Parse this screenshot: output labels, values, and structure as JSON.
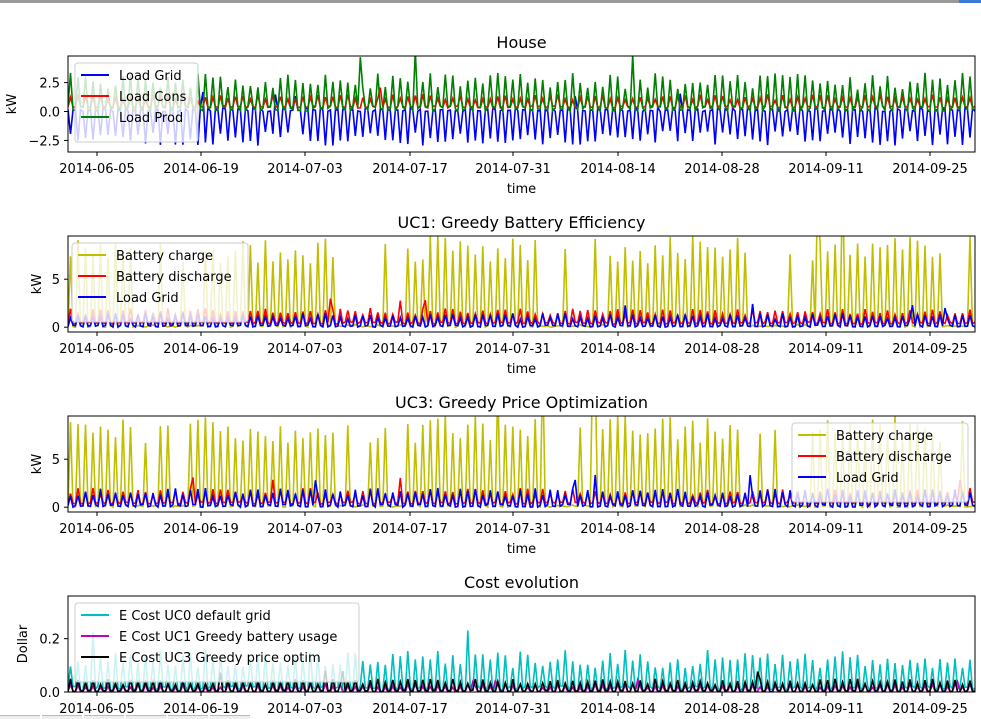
{
  "window": {
    "accent": "#3a7bd5"
  },
  "chart_data": [
    {
      "type": "line",
      "title": "House",
      "xlabel": "time",
      "ylabel": "kW",
      "x_ticks": [
        "2014-06-05",
        "2014-06-19",
        "2014-07-03",
        "2014-07-17",
        "2014-07-31",
        "2014-08-14",
        "2014-08-28",
        "2014-09-11",
        "2014-09-25"
      ],
      "y_ticks": [
        "2.5",
        "0.0",
        "−2.5"
      ],
      "ylim": [
        -3.5,
        4.8
      ],
      "xlim": [
        "2014-06-01",
        "2014-09-30"
      ],
      "legend_position": "top-left",
      "series": [
        {
          "name": "Load Grid",
          "color": "#0000ff",
          "pattern": "daily",
          "range": [
            -3.0,
            1.0
          ]
        },
        {
          "name": "Load Cons",
          "color": "#ff0000",
          "pattern": "daily",
          "range": [
            0.3,
            1.5
          ]
        },
        {
          "name": "Load Prod",
          "color": "#008000",
          "pattern": "daily",
          "range": [
            0.0,
            3.4
          ]
        }
      ]
    },
    {
      "type": "line",
      "title": "UC1: Greedy Battery Efficiency",
      "xlabel": "time",
      "ylabel": "kW",
      "x_ticks": [
        "2014-06-05",
        "2014-06-19",
        "2014-07-03",
        "2014-07-17",
        "2014-07-31",
        "2014-08-14",
        "2014-08-28",
        "2014-09-11",
        "2014-09-25"
      ],
      "y_ticks": [
        "5",
        "0"
      ],
      "ylim": [
        -0.5,
        9.5
      ],
      "xlim": [
        "2014-06-01",
        "2014-09-30"
      ],
      "legend_position": "top-left",
      "series": [
        {
          "name": "Battery charge",
          "color": "#bfbf00",
          "pattern": "daily",
          "range": [
            0,
            9.5
          ]
        },
        {
          "name": "Battery discharge",
          "color": "#ff0000",
          "pattern": "daily",
          "range": [
            0.3,
            2.0
          ]
        },
        {
          "name": "Load Grid",
          "color": "#0000ff",
          "pattern": "daily",
          "range": [
            0,
            1.5
          ]
        }
      ]
    },
    {
      "type": "line",
      "title": "UC3: Greedy Price Optimization",
      "xlabel": "time",
      "ylabel": "kW",
      "x_ticks": [
        "2014-06-05",
        "2014-06-19",
        "2014-07-03",
        "2014-07-17",
        "2014-07-31",
        "2014-08-14",
        "2014-08-28",
        "2014-09-11",
        "2014-09-25"
      ],
      "y_ticks": [
        "5",
        "0"
      ],
      "ylim": [
        -0.5,
        9.5
      ],
      "xlim": [
        "2014-06-01",
        "2014-09-30"
      ],
      "legend_position": "top-right",
      "series": [
        {
          "name": "Battery charge",
          "color": "#bfbf00",
          "pattern": "daily",
          "range": [
            0,
            9.5
          ]
        },
        {
          "name": "Battery discharge",
          "color": "#ff0000",
          "pattern": "daily",
          "range": [
            0.3,
            2.0
          ]
        },
        {
          "name": "Load Grid",
          "color": "#0000ff",
          "pattern": "daily",
          "range": [
            0,
            2.0
          ]
        }
      ]
    },
    {
      "type": "line",
      "title": "Cost evolution",
      "xlabel": "",
      "ylabel": "Dollar",
      "x_ticks": [
        "2014-06-05",
        "2014-06-19",
        "2014-07-03",
        "2014-07-17",
        "2014-07-31",
        "2014-08-14",
        "2014-08-28",
        "2014-09-11",
        "2014-09-25"
      ],
      "y_ticks": [
        "0.2",
        "0.0"
      ],
      "ylim": [
        0,
        0.36
      ],
      "xlim": [
        "2014-06-01",
        "2014-09-30"
      ],
      "legend_position": "top-left",
      "series": [
        {
          "name": "E Cost UC0 default grid",
          "color": "#00bfbf",
          "pattern": "daily",
          "range": [
            0,
            0.16
          ]
        },
        {
          "name": "E Cost UC1 Greedy battery usage",
          "color": "#bf00bf",
          "pattern": "daily",
          "range": [
            0,
            0.03
          ]
        },
        {
          "name": "E Cost UC3 Greedy price optim",
          "color": "#000000",
          "pattern": "daily",
          "range": [
            0,
            0.05
          ]
        }
      ]
    }
  ]
}
